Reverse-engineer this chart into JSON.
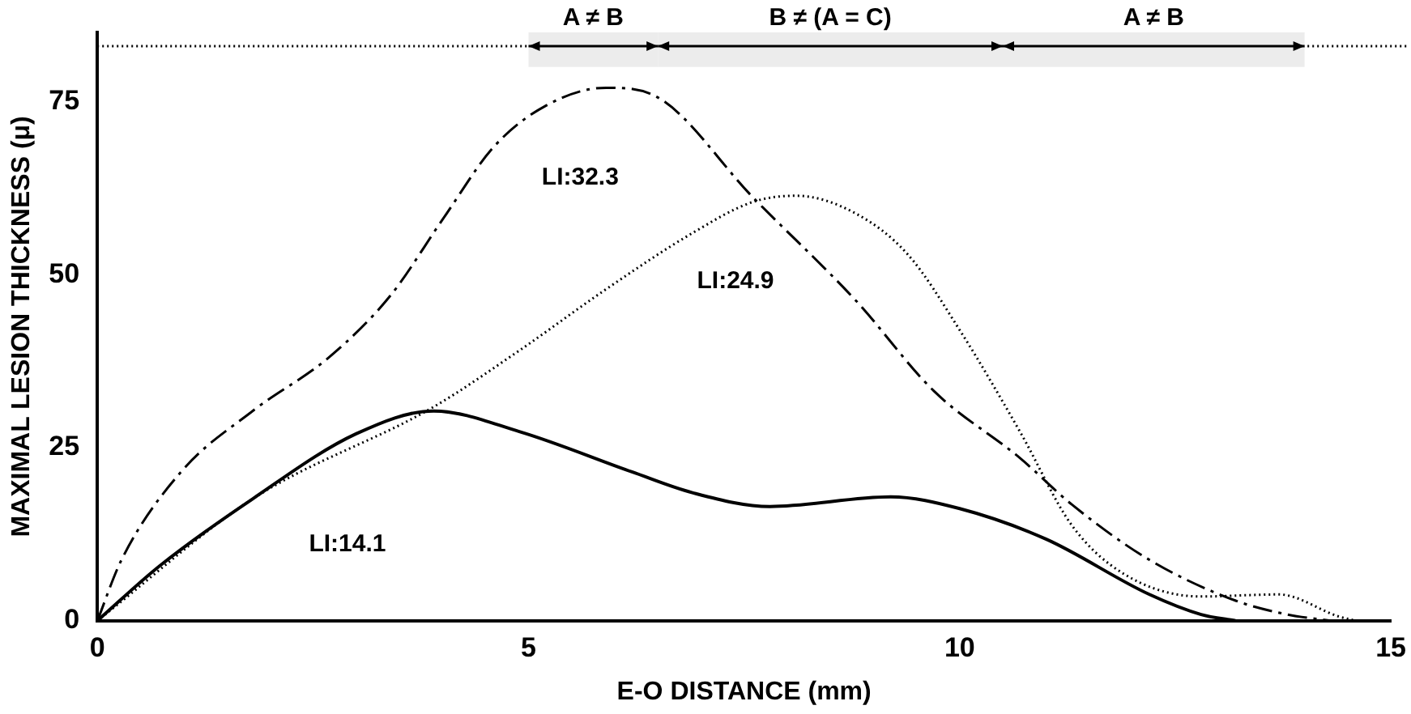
{
  "chart_data": {
    "type": "line",
    "xlabel": "E-O DISTANCE (mm)",
    "ylabel": "MAXIMAL LESION THICKNESS (μ)",
    "xlim": [
      0,
      15
    ],
    "xticks": [
      0,
      5,
      10,
      15
    ],
    "ylim": [
      0,
      85
    ],
    "yticks": [
      0,
      25,
      50,
      75
    ],
    "grid": false,
    "legend": false,
    "marker": "none",
    "series": [
      {
        "name": "LI:14.1",
        "color": "#000000",
        "line_style": "solid",
        "x": [
          0,
          0.72,
          1.8,
          3,
          3.9,
          4.9,
          6.2,
          6.9,
          7.8,
          9.2,
          10,
          11,
          12.2,
          12.8,
          13.2
        ],
        "values": [
          0,
          7.9,
          17.6,
          27,
          30.3,
          27.3,
          21.5,
          18.5,
          16.5,
          17.9,
          16.2,
          11.8,
          3.8,
          0.9,
          0
        ]
      },
      {
        "name": "LI:32.3",
        "color": "#000000",
        "line_style": "dashed",
        "x": [
          0,
          0.28,
          0.97,
          1.8,
          2.7,
          3.4,
          4,
          4.6,
          5.2,
          5.9,
          6.5,
          7.6,
          8.8,
          9.7,
          10.7,
          11.3,
          12.2,
          13.2,
          13.8,
          14.3
        ],
        "values": [
          0,
          8.8,
          21.5,
          30.3,
          38.2,
          47,
          57.9,
          68.5,
          74.4,
          77,
          75.6,
          61.2,
          46.2,
          33.2,
          23.5,
          16.8,
          8.8,
          2.9,
          0.9,
          0
        ]
      },
      {
        "name": "LI:24.9",
        "color": "#000000",
        "line_style": "dotted",
        "x": [
          0,
          1.8,
          3.9,
          4.9,
          5.9,
          6.9,
          7.6,
          8.1,
          8.8,
          9.4,
          10,
          10.7,
          11.3,
          11.9,
          12.8,
          13.7,
          14.4,
          14.6
        ],
        "values": [
          0,
          17.6,
          30.9,
          39.1,
          47.9,
          56,
          60.5,
          61.4,
          58.8,
          52.9,
          42,
          27.3,
          13.8,
          6.8,
          3.5,
          3.8,
          0.6,
          0
        ]
      }
    ],
    "ref_lines": [
      {
        "axis": "y",
        "value": 83,
        "line_style": "dotted"
      }
    ],
    "bands": [
      {
        "axis": "x",
        "from": 5,
        "to": 6.5,
        "label": "A ≠ B"
      },
      {
        "axis": "x",
        "from": 6.5,
        "to": 10.5,
        "label": "B ≠ (A = C)"
      },
      {
        "axis": "x",
        "from": 10.5,
        "to": 14,
        "label": "A ≠ B"
      }
    ]
  }
}
